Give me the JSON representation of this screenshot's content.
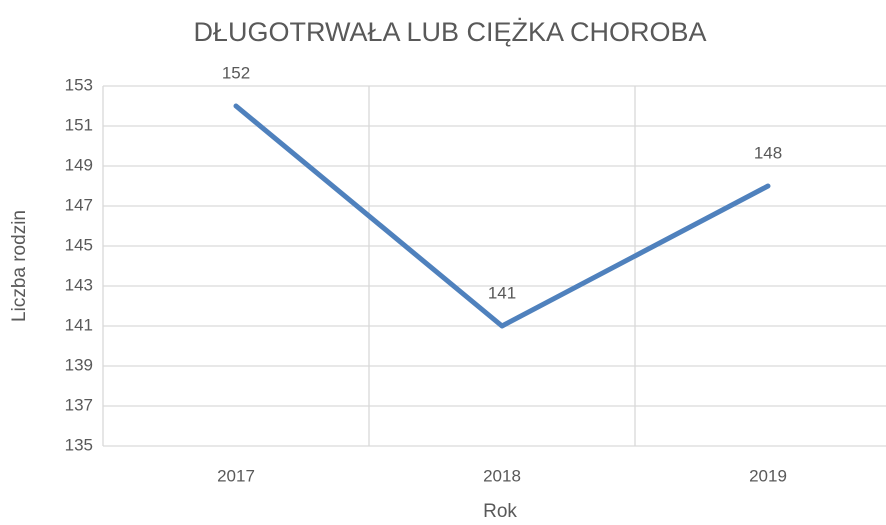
{
  "chart_data": {
    "type": "line",
    "title": "DŁUGOTRWAŁA LUB CIĘŻKA CHOROBA",
    "x_label": "Rok",
    "y_label": "Liczba rodzin",
    "categories": [
      "2017",
      "2018",
      "2019"
    ],
    "series": [
      {
        "name": "Liczba rodzin",
        "color": "#4f81bd",
        "values": [
          152,
          141,
          148
        ]
      }
    ],
    "ylim": [
      135,
      153
    ],
    "yticks": [
      135,
      137,
      139,
      141,
      143,
      145,
      147,
      149,
      151,
      153
    ],
    "grid": true,
    "data_labels": true
  }
}
